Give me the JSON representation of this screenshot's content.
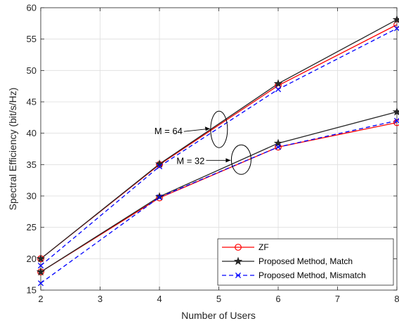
{
  "chart_data": {
    "type": "line",
    "title": "",
    "xlabel": "Number of Users",
    "ylabel": "Spectral Efficiency (bit/s/Hz)",
    "xlim": [
      2,
      8
    ],
    "ylim": [
      15,
      60
    ],
    "xticks": [
      2,
      3,
      4,
      5,
      6,
      7,
      8
    ],
    "yticks": [
      15,
      20,
      25,
      30,
      35,
      40,
      45,
      50,
      55,
      60
    ],
    "grid": true,
    "legend_position": "bottom-right",
    "x": [
      2,
      4,
      6,
      8
    ],
    "series": [
      {
        "name": "ZF",
        "group": "M = 64",
        "color": "#ff0000",
        "dash": "solid",
        "marker": "circle",
        "values": [
          20.0,
          35.0,
          47.6,
          57.3
        ]
      },
      {
        "name": "Proposed Method, Match",
        "group": "M = 64",
        "color": "#262626",
        "dash": "solid",
        "marker": "star",
        "values": [
          20.0,
          35.1,
          47.9,
          58.1
        ]
      },
      {
        "name": "Proposed Method, Mismatch",
        "group": "M = 64",
        "color": "#0000ff",
        "dash": "dashed",
        "marker": "x",
        "values": [
          18.9,
          34.7,
          47.0,
          56.7
        ]
      },
      {
        "name": "ZF",
        "group": "M = 32",
        "color": "#ff0000",
        "dash": "solid",
        "marker": "circle",
        "values": [
          17.9,
          29.7,
          37.8,
          41.7
        ]
      },
      {
        "name": "Proposed Method, Match",
        "group": "M = 32",
        "color": "#262626",
        "dash": "solid",
        "marker": "star",
        "values": [
          17.9,
          29.9,
          38.4,
          43.4
        ]
      },
      {
        "name": "Proposed Method, Mismatch",
        "group": "M = 32",
        "color": "#0000ff",
        "dash": "dashed",
        "marker": "x",
        "values": [
          16.1,
          29.8,
          37.8,
          42.0
        ]
      }
    ],
    "legend": [
      {
        "label": "ZF",
        "color": "#ff0000",
        "dash": "solid",
        "marker": "circle"
      },
      {
        "label": "Proposed Method, Match",
        "color": "#262626",
        "dash": "solid",
        "marker": "star"
      },
      {
        "label": "Proposed Method, Mismatch",
        "color": "#0000ff",
        "dash": "dashed",
        "marker": "x"
      }
    ],
    "annotations": [
      {
        "text": "M = 64",
        "x": 4.85,
        "y": 40.5
      },
      {
        "text": "M = 32",
        "x": 5.2,
        "y": 35.9
      }
    ]
  }
}
